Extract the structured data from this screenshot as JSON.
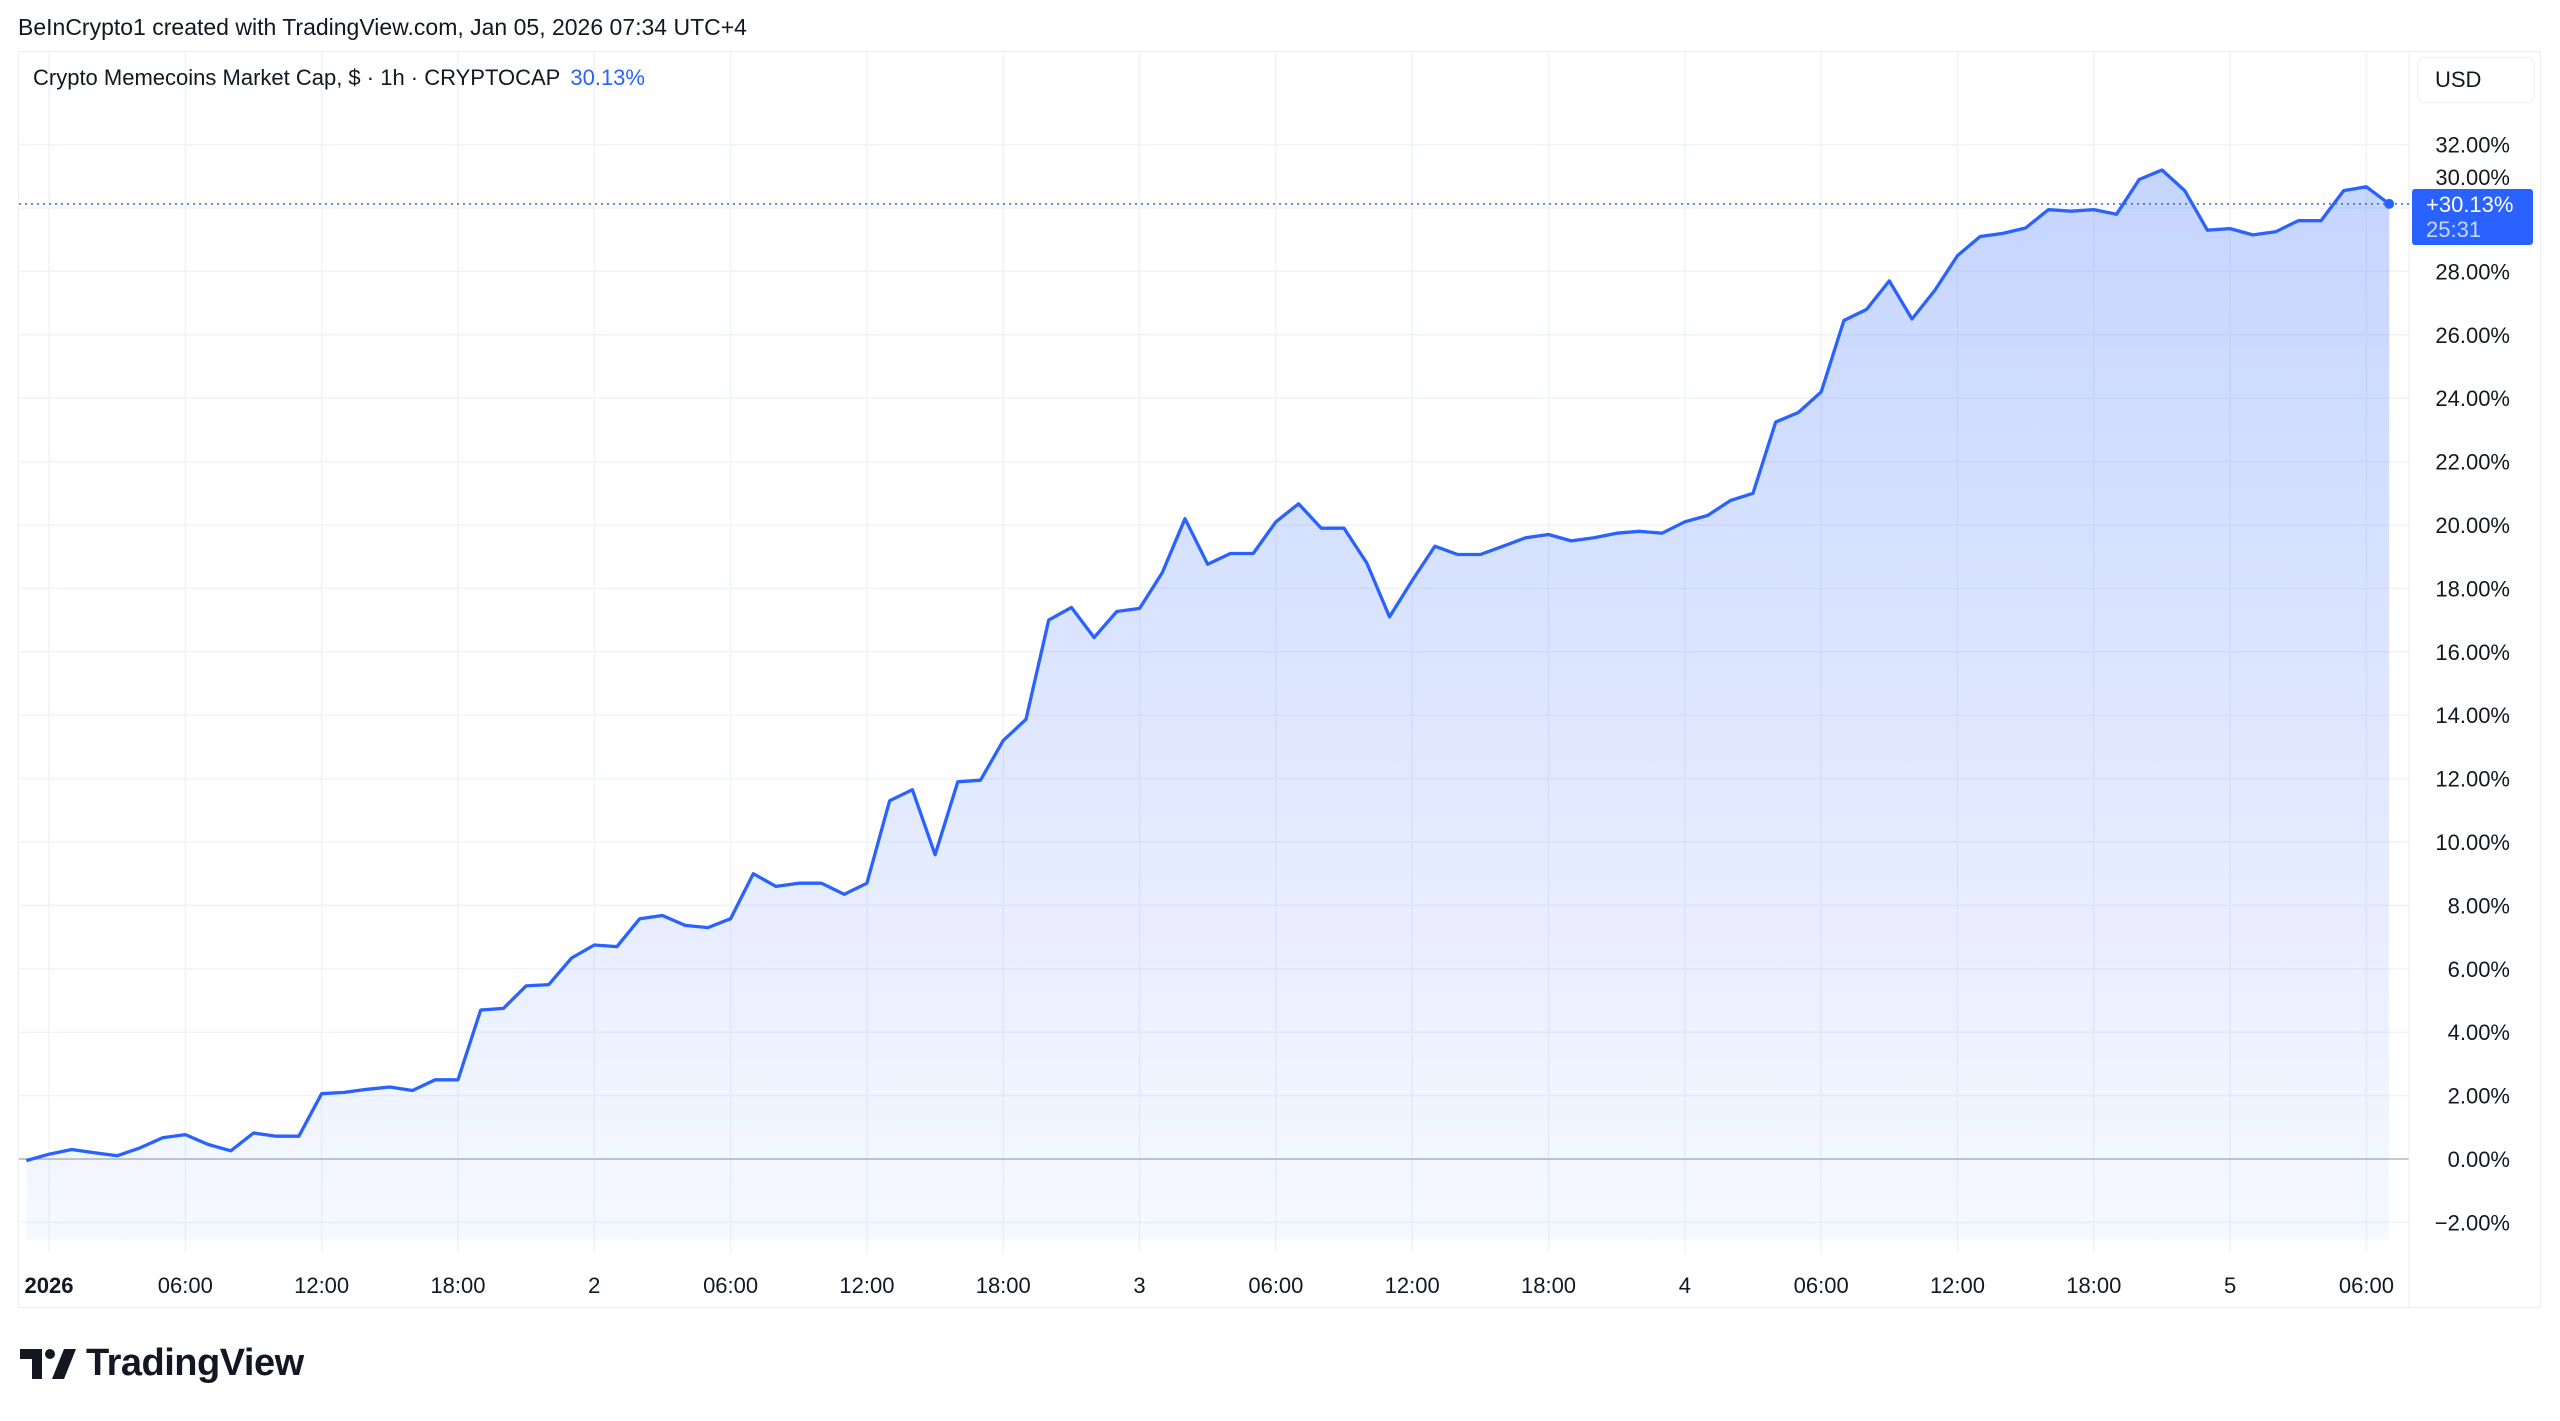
{
  "credit": "BeInCrypto1 created with TradingView.com, Jan 05, 2026 07:34 UTC+4",
  "legend": {
    "title": "Crypto Memecoins Market Cap, $ · 1h · CRYPTOCAP",
    "change": "30.13%"
  },
  "currency_button": "USD",
  "last_price": {
    "value": "+30.13%",
    "countdown": "25:31"
  },
  "brand": "TradingView",
  "colors": {
    "line": "#2962ff",
    "fill": "#2962ff",
    "grid": "#f0f3fa",
    "zero_line": "#b2b5be"
  },
  "chart_data": {
    "type": "area",
    "title": "Crypto Memecoins Market Cap, $ · 1h · CRYPTOCAP",
    "interval": "1h",
    "ylim": [
      -2,
      32
    ],
    "y_ticks": [
      "32.00%",
      "30.00%",
      "28.00%",
      "26.00%",
      "24.00%",
      "22.00%",
      "20.00%",
      "18.00%",
      "16.00%",
      "14.00%",
      "12.00%",
      "10.00%",
      "8.00%",
      "6.00%",
      "4.00%",
      "2.00%",
      "0.00%",
      "−2.00%"
    ],
    "x_ticks": [
      {
        "label": "2026",
        "day": "Jan 1",
        "hour": 0,
        "bold": true
      },
      {
        "label": "06:00",
        "day": "Jan 1",
        "hour": 6
      },
      {
        "label": "12:00",
        "day": "Jan 1",
        "hour": 12
      },
      {
        "label": "18:00",
        "day": "Jan 1",
        "hour": 18
      },
      {
        "label": "2",
        "day": "Jan 2",
        "hour": 0
      },
      {
        "label": "06:00",
        "day": "Jan 2",
        "hour": 6
      },
      {
        "label": "12:00",
        "day": "Jan 2",
        "hour": 12
      },
      {
        "label": "18:00",
        "day": "Jan 2",
        "hour": 18
      },
      {
        "label": "3",
        "day": "Jan 3",
        "hour": 0
      },
      {
        "label": "06:00",
        "day": "Jan 3",
        "hour": 6
      },
      {
        "label": "12:00",
        "day": "Jan 3",
        "hour": 12
      },
      {
        "label": "18:00",
        "day": "Jan 3",
        "hour": 18
      },
      {
        "label": "4",
        "day": "Jan 4",
        "hour": 0
      },
      {
        "label": "06:00",
        "day": "Jan 4",
        "hour": 6
      },
      {
        "label": "12:00",
        "day": "Jan 4",
        "hour": 12
      },
      {
        "label": "18:00",
        "day": "Jan 4",
        "hour": 18
      },
      {
        "label": "5",
        "day": "Jan 5",
        "hour": 0
      },
      {
        "label": "06:00",
        "day": "Jan 5",
        "hour": 6
      }
    ],
    "grid": true,
    "unit": "%",
    "days": [
      {
        "day": "Dec 31",
        "first_hour": 23,
        "values": [
          -0.05
        ]
      },
      {
        "day": "Jan 1",
        "first_hour": 0,
        "values": [
          0.15,
          0.3,
          0.2,
          0.1,
          0.35,
          0.67,
          0.77,
          0.46,
          0.26,
          0.82,
          0.72,
          0.72,
          2.06,
          2.1,
          2.2,
          2.27,
          2.16,
          2.5,
          2.5,
          4.7,
          4.75,
          5.46,
          5.5,
          6.34
        ]
      },
      {
        "day": "Jan 2",
        "first_hour": 0,
        "values": [
          6.75,
          6.7,
          7.58,
          7.68,
          7.37,
          7.3,
          7.58,
          9.0,
          8.6,
          8.7,
          8.7,
          8.35,
          8.7,
          11.3,
          11.65,
          9.6,
          11.9,
          11.95,
          13.2,
          13.87,
          17.0,
          17.4,
          16.45,
          17.27
        ]
      },
      {
        "day": "Jan 3",
        "first_hour": 0,
        "values": [
          17.37,
          18.5,
          20.2,
          18.76,
          19.1,
          19.1,
          20.1,
          20.67,
          19.9,
          19.9,
          18.8,
          17.1,
          18.25,
          19.33,
          19.07,
          19.07,
          19.33,
          19.6,
          19.7,
          19.5,
          19.6,
          19.74,
          19.8,
          19.74
        ]
      },
      {
        "day": "Jan 4",
        "first_hour": 0,
        "values": [
          20.1,
          20.3,
          20.77,
          21.0,
          23.25,
          23.55,
          24.2,
          26.45,
          26.8,
          27.7,
          26.5,
          27.4,
          28.5,
          29.1,
          29.2,
          29.37,
          29.95,
          29.9,
          29.95,
          29.8,
          30.9,
          31.2,
          30.55,
          29.3
        ]
      },
      {
        "day": "Jan 5",
        "first_hour": 0,
        "values": [
          29.35,
          29.15,
          29.25,
          29.6,
          29.6,
          30.55,
          30.67,
          30.13
        ]
      }
    ],
    "last_value": 30.13
  }
}
